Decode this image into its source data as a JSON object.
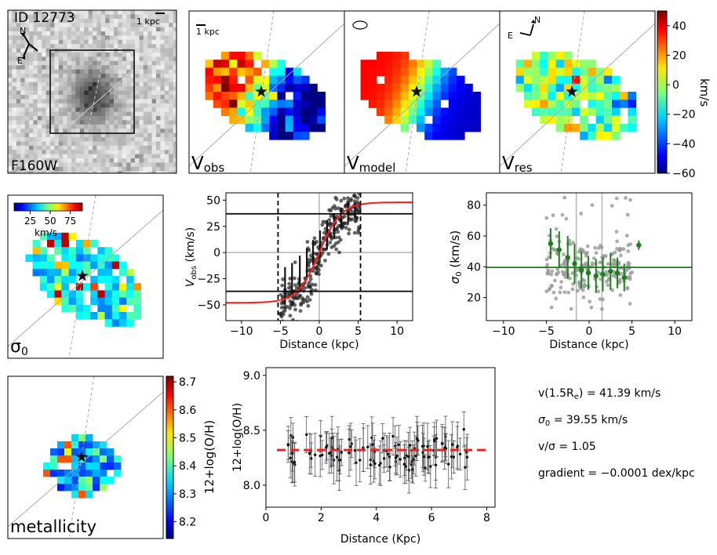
{
  "image_panel": {
    "id_label": "ID 12773",
    "scale_label": "1 kpc",
    "north": "N",
    "east": "E",
    "filter_label": "F160W"
  },
  "velocity_maps": {
    "scale_label": "1 kpc",
    "panels": [
      {
        "label_main": "V",
        "label_sub": "obs"
      },
      {
        "label_main": "V",
        "label_sub": "model"
      },
      {
        "label_main": "V",
        "label_sub": "res"
      }
    ],
    "north": "N",
    "east": "E"
  },
  "velocity_colorbar": {
    "ticks": [
      "40",
      "20",
      "0",
      "−20",
      "−40",
      "−60"
    ],
    "tick_values": [
      40,
      20,
      0,
      -20,
      -40,
      -60
    ],
    "range": [
      -60,
      50
    ],
    "label": "km/s"
  },
  "sigma_map": {
    "label_main": "σ",
    "label_sub": "0",
    "colorbar_ticks": [
      "25",
      "50",
      "75"
    ],
    "colorbar_tick_values": [
      25,
      50,
      75
    ],
    "colorbar_range": [
      5,
      90
    ],
    "colorbar_label": "km/s"
  },
  "metallicity_map": {
    "label": "metallicity",
    "colorbar_ticks": [
      "8.7",
      "8.6",
      "8.5",
      "8.4",
      "8.3",
      "8.2"
    ],
    "colorbar_tick_values": [
      8.7,
      8.6,
      8.5,
      8.4,
      8.3,
      8.2
    ],
    "colorbar_range": [
      8.14,
      8.72
    ],
    "colorbar_label": "12+log(O/H)"
  },
  "summary": {
    "vrot_label": "v(1.5R",
    "vrot_sub": "e",
    "vrot_value": ") = 41.39 km/s",
    "sigma_label": "σ",
    "sigma_sub": "0",
    "sigma_value": " = 39.55 km/s",
    "ratio": "v/σ = 1.05",
    "gradient": "gradient = −0.0001 dex/kpc"
  },
  "colors": {
    "model_curve": "#ff1a1a",
    "sigma_points": "#1a801a",
    "sigma_line": "#1a801a",
    "gradient_line": "#ff1a1a",
    "scatter": "#222222",
    "grey_points": "#999999"
  },
  "chart_data": [
    {
      "type": "line",
      "title": "",
      "xlabel": "Distance (kpc)",
      "ylabel_main": "V",
      "ylabel_sub": "obs",
      "ylabel_unit": " (km/s)",
      "xlim": [
        -12,
        12
      ],
      "ylim": [
        -65,
        57
      ],
      "xticks": [
        -10,
        -5,
        0,
        5,
        10
      ],
      "yticks": [
        -50,
        -25,
        0,
        25,
        50
      ],
      "xtick_labels": [
        "−10",
        "−5",
        "0",
        "5",
        "10"
      ],
      "ytick_labels": [
        "−50",
        "−25",
        "0",
        "25",
        "50"
      ],
      "model_curve": {
        "vmax": 48,
        "rt": 2.8,
        "x_range": [
          -12,
          12
        ]
      },
      "hlines": [
        37,
        -37
      ],
      "vlines_dashed": [
        -5.3,
        5.3
      ],
      "grey_hline": 0,
      "grey_vline": 0,
      "binned_points": [
        {
          "x": -4.4,
          "y": -32,
          "err": 18
        },
        {
          "x": -3.5,
          "y": -25,
          "err": 15
        },
        {
          "x": -2.5,
          "y": -18,
          "err": 15
        },
        {
          "x": -1.6,
          "y": -10,
          "err": 14
        },
        {
          "x": -0.8,
          "y": 0,
          "err": 12
        },
        {
          "x": 0.1,
          "y": 8,
          "err": 13
        },
        {
          "x": 1.0,
          "y": 17,
          "err": 14
        },
        {
          "x": 1.9,
          "y": 25,
          "err": 12
        },
        {
          "x": 2.8,
          "y": 33,
          "err": 10
        },
        {
          "x": 3.7,
          "y": 38,
          "err": 10
        },
        {
          "x": 4.6,
          "y": 40,
          "err": 8
        }
      ],
      "scatter": {
        "count": 300,
        "x_range": [
          -5,
          5.2
        ],
        "scatter_y": 12,
        "seed": 7
      }
    },
    {
      "type": "scatter",
      "title": "",
      "xlabel": "Distance (kpc)",
      "ylabel_main": "σ",
      "ylabel_sub": "0",
      "ylabel_unit": " (km/s)",
      "xlim": [
        -12,
        12
      ],
      "ylim": [
        5,
        88
      ],
      "xticks": [
        -10,
        -5,
        0,
        5,
        10
      ],
      "yticks": [
        20,
        40,
        60,
        80
      ],
      "xtick_labels": [
        "−10",
        "−5",
        "0",
        "5",
        "10"
      ],
      "ytick_labels": [
        "20",
        "40",
        "60",
        "80"
      ],
      "hline": 39.55,
      "grey_vlines": [
        -1.5,
        1.5
      ],
      "binned_points": [
        {
          "x": -4.5,
          "y": 55,
          "err": 10
        },
        {
          "x": -3.5,
          "y": 51,
          "err": 12
        },
        {
          "x": -2.5,
          "y": 46,
          "err": 14
        },
        {
          "x": -1.7,
          "y": 42,
          "err": 13
        },
        {
          "x": -0.9,
          "y": 38,
          "err": 12
        },
        {
          "x": -0.1,
          "y": 36,
          "err": 11
        },
        {
          "x": 0.8,
          "y": 34,
          "err": 11
        },
        {
          "x": 1.6,
          "y": 35,
          "err": 11
        },
        {
          "x": 2.5,
          "y": 37,
          "err": 12
        },
        {
          "x": 3.3,
          "y": 36,
          "err": 10
        },
        {
          "x": 4.1,
          "y": 33,
          "err": 9
        },
        {
          "x": 5.8,
          "y": 54,
          "err": 3
        }
      ],
      "scatter": {
        "count": 220,
        "x_range": [
          -5,
          5
        ],
        "seed": 13
      }
    },
    {
      "type": "scatter",
      "title": "",
      "xlabel": "Distance (Kpc)",
      "ylabel": "12+log(O/H)",
      "xlim": [
        0,
        8.3
      ],
      "ylim": [
        7.8,
        9.07
      ],
      "xticks": [
        0,
        2,
        4,
        6,
        8
      ],
      "yticks": [
        8.0,
        8.5,
        9.0
      ],
      "xtick_labels": [
        "0",
        "2",
        "4",
        "6",
        "8"
      ],
      "ytick_labels": [
        "8.0",
        "8.5",
        "9.0"
      ],
      "gradient_line": {
        "x_range": [
          0.4,
          8.1
        ],
        "y": 8.32
      },
      "points": {
        "count": 115,
        "x_range": [
          0.8,
          7.3
        ],
        "y_center": 8.3,
        "y_scatter": 0.08,
        "err_range": [
          0.12,
          0.22
        ],
        "seed": 21
      }
    }
  ]
}
